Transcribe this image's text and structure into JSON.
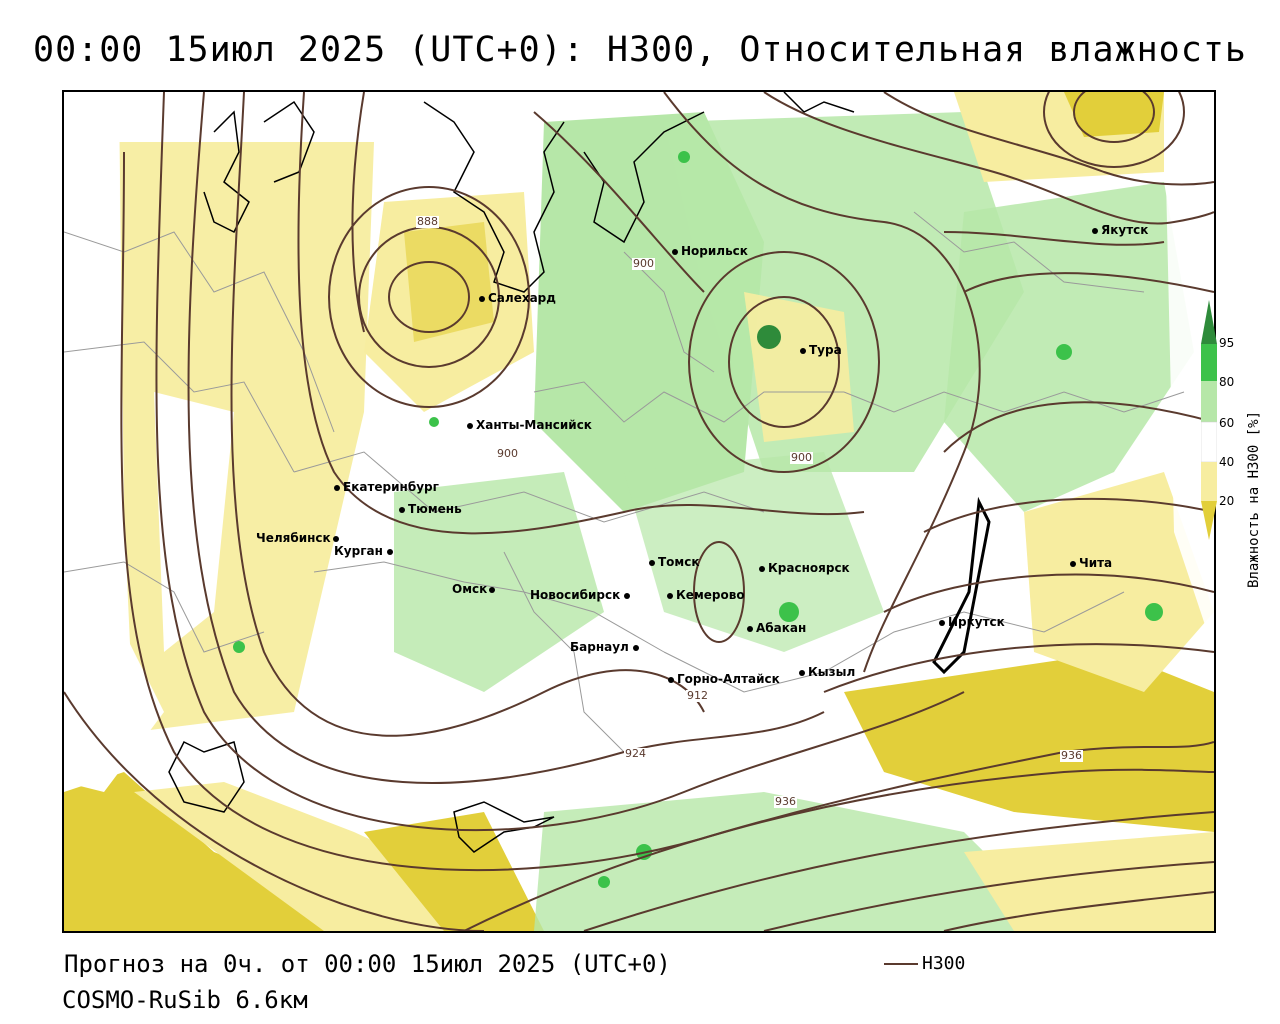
{
  "title": "00:00 15июл 2025 (UTC+0): H300, Относительная влажность",
  "footer": {
    "forecast": "Прогноз на 0ч. от 00:00 15июл 2025 (UTC+0)",
    "model": "COSMO-RuSib 6.6км"
  },
  "legend": {
    "line_label": "H300",
    "line_color": "#5a3a2e"
  },
  "colorbar": {
    "title": "Влажность на H300 [%]",
    "ticks": [
      "95",
      "80",
      "60",
      "40",
      "20"
    ],
    "colors": {
      "c95": "#2e8b3a",
      "c80": "#3cc24a",
      "c60": "#b6e7a8",
      "c40": "#ffffff",
      "c20": "#f7eda0",
      "c0": "#e2cf3a"
    }
  },
  "cities": [
    {
      "name": "Салехард"
    },
    {
      "name": "Норильск"
    },
    {
      "name": "Тура"
    },
    {
      "name": "Якутск"
    },
    {
      "name": "Ханты-Мансийск"
    },
    {
      "name": "Екатеринбург"
    },
    {
      "name": "Тюмень"
    },
    {
      "name": "Челябинск"
    },
    {
      "name": "Курган"
    },
    {
      "name": "Омск"
    },
    {
      "name": "Новосибирск"
    },
    {
      "name": "Томск"
    },
    {
      "name": "Кемерово"
    },
    {
      "name": "Красноярск"
    },
    {
      "name": "Абакан"
    },
    {
      "name": "Барнаул"
    },
    {
      "name": "Горно-Алтайск"
    },
    {
      "name": "Кызыл"
    },
    {
      "name": "Иркутск"
    },
    {
      "name": "Чита"
    }
  ],
  "contour_labels": [
    "888",
    "900",
    "900",
    "900",
    "912",
    "924",
    "936",
    "936"
  ]
}
